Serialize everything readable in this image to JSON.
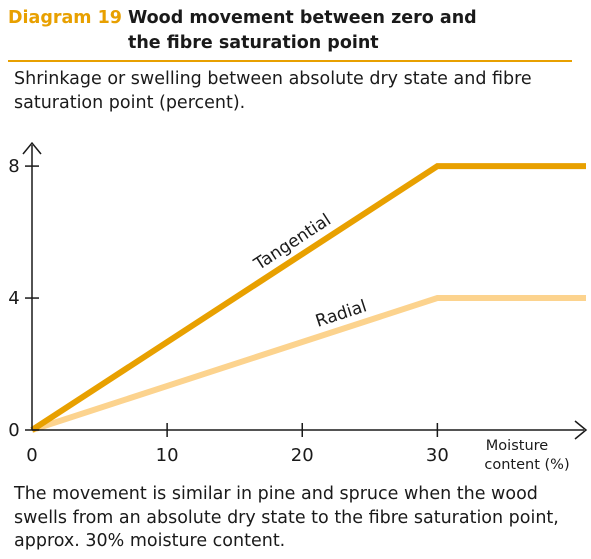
{
  "header": {
    "diagram_number": "Diagram 19",
    "title": "Wood movement between zero and the fibre saturation point"
  },
  "subtitle": "Shrinkage or swelling between absolute dry state and fibre saturation point (percent).",
  "footnote": "The movement is similar in pine and spruce when the wood swells from an absolute dry state to the fibre saturation point, approx. 30% moisture content.",
  "colors": {
    "accent": "#e8a000",
    "radial": "#fcd38e",
    "axis": "#1a1a1a"
  },
  "chart_data": {
    "type": "line",
    "title": "",
    "xlabel": "Moisture content (%)",
    "ylabel": "",
    "xlabel_lines": [
      "Moisture",
      "content (%)"
    ],
    "xlim": [
      0,
      41
    ],
    "ylim": [
      0,
      8.7
    ],
    "xticks": [
      0,
      10,
      20,
      30
    ],
    "yticks": [
      0,
      4,
      8
    ],
    "grid": false,
    "series": [
      {
        "name": "Tangential",
        "color": "#e8a000",
        "x": [
          0,
          30,
          41
        ],
        "y": [
          0,
          8,
          8
        ]
      },
      {
        "name": "Radial",
        "color": "#fcd38e",
        "x": [
          0,
          30,
          41
        ],
        "y": [
          0,
          4,
          4
        ]
      }
    ]
  }
}
